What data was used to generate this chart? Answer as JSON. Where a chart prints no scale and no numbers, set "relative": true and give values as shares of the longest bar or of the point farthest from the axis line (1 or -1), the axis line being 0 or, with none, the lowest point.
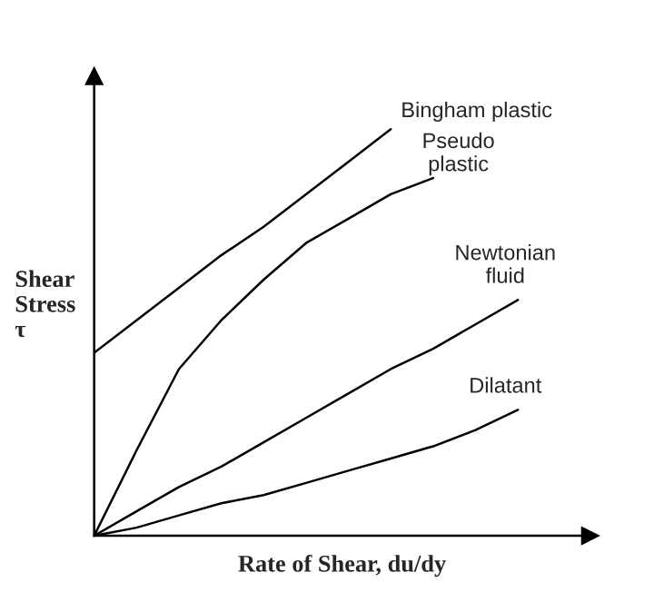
{
  "chart_data": {
    "type": "line",
    "relative": true,
    "xlabel": "Rate of Shear, du/dy",
    "ylabel": "Shear\nStress\nτ",
    "legend": false,
    "marker": "none",
    "line_style": "solid",
    "categories": [
      null,
      null,
      null,
      null,
      null,
      null,
      null,
      null,
      null,
      null,
      null
    ],
    "series": [
      {
        "name": "Bingham plastic",
        "color": "#000000",
        "values": [
          0.45,
          0.53,
          0.61,
          0.69,
          0.76,
          0.84,
          0.92,
          1.0,
          null,
          null,
          null
        ]
      },
      {
        "name": "Pseudo\nplastic",
        "color": "#000000",
        "values": [
          0,
          0.21,
          0.41,
          0.53,
          0.63,
          0.72,
          0.78,
          0.84,
          0.88,
          null,
          null
        ]
      },
      {
        "name": "Newtonian\nfluid",
        "color": "#000000",
        "values": [
          0,
          0.06,
          0.12,
          0.17,
          0.23,
          0.29,
          0.35,
          0.41,
          0.46,
          0.52,
          0.58
        ]
      },
      {
        "name": "Dilatant",
        "color": "#000000",
        "values": [
          0,
          0.02,
          0.05,
          0.08,
          0.1,
          0.13,
          0.16,
          0.19,
          0.22,
          0.26,
          0.31
        ]
      }
    ]
  }
}
